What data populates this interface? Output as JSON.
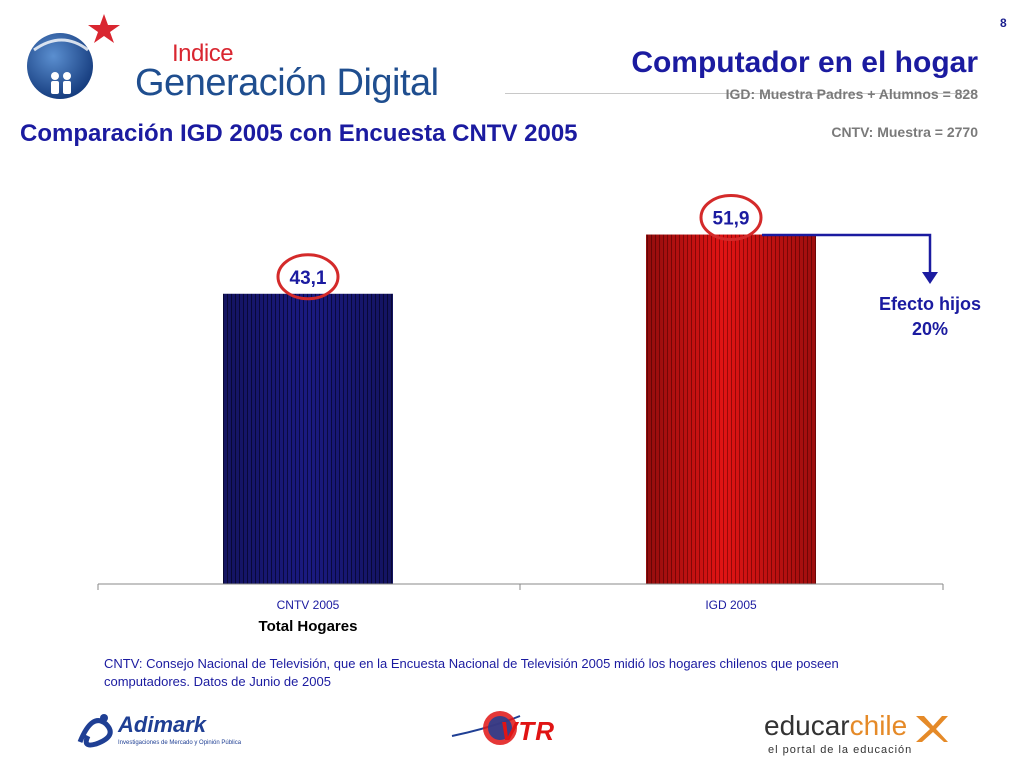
{
  "slide_number": "8",
  "logo": {
    "small_text": "Indice",
    "main_text": "Generación Digital",
    "icon": "star-globe-icon"
  },
  "header": {
    "title": "Computador en el hogar",
    "sample_igd": "IGD: Muestra Padres + Alumnos = 828",
    "sample_cntv": "CNTV: Muestra = 2770"
  },
  "section_title": "Comparación IGD 2005 con Encuesta CNTV 2005",
  "annotation": {
    "line1": "Efecto hijos",
    "line2": "20%",
    "icon": "elbow-arrow-icon"
  },
  "footnote": "CNTV: Consejo Nacional de Televisión, que en la Encuesta Nacional de Televisión 2005 midió los hogares chilenos que poseen computadores. Datos de Junio de 2005",
  "footer": {
    "adimark_name": "Adimark",
    "adimark_tagline": "Investigaciones de Mercado y Opinión Pública",
    "vtr_name": "VTR",
    "educar_name_a": "educar",
    "educar_name_b": "chile",
    "educar_tagline": "el portal de la educación"
  },
  "colors": {
    "title_blue": "#1b1ba0",
    "bar_navy": "#1a1a80",
    "bar_red": "#e01414",
    "highlight_circle": "#d42a2a",
    "grey_text": "#7a7a7a"
  },
  "chart_data": {
    "type": "bar",
    "categories": [
      "CNTV 2005",
      "IGD 2005"
    ],
    "values": [
      43.1,
      51.9
    ],
    "value_labels": [
      "43,1",
      "51,9"
    ],
    "xlabel": "Total Hogares",
    "ylabel": "",
    "ylim": [
      0,
      60
    ],
    "grid": false,
    "legend": "none",
    "bar_colors": [
      "#1a1a80",
      "#e01414"
    ],
    "highlight_circles": true
  }
}
